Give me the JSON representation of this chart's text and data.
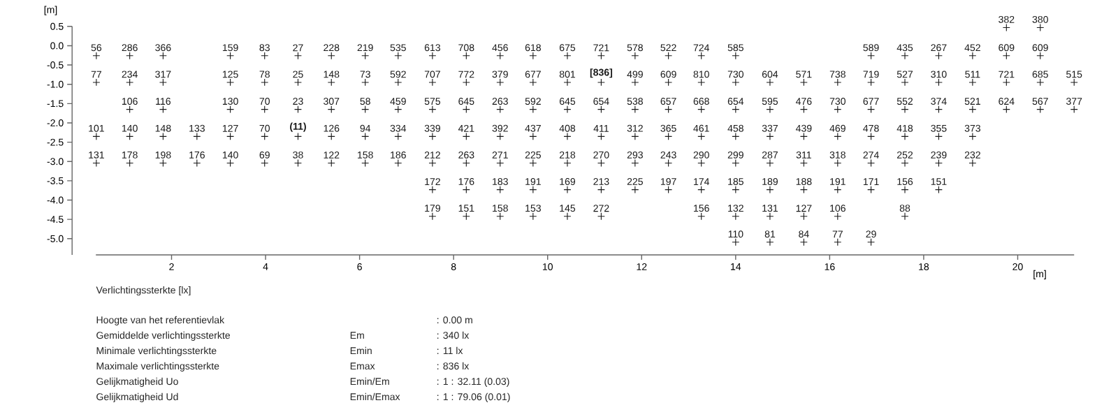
{
  "chart_data": {
    "type": "scatter",
    "xlabel": "[m]",
    "ylabel": "[m]",
    "marker": "cross",
    "color": "#1a1a1a",
    "xlim": [
      0.39,
      21.2
    ],
    "ylim": [
      -5.42,
      0.5
    ],
    "xticks": [
      2,
      4,
      6,
      8,
      10,
      12,
      14,
      16,
      18,
      20
    ],
    "yticks": [
      0.5,
      {
        "value": 0,
        "label": "0.0"
      },
      -0.5,
      {
        "value": -1,
        "label": "-1.0"
      },
      -1.5,
      {
        "value": -2,
        "label": "-2.0"
      },
      -2.5,
      {
        "value": -3,
        "label": "-3.0"
      },
      -3.5,
      {
        "value": -4,
        "label": "-4.0"
      },
      -4.5,
      {
        "value": -5,
        "label": "-5.0"
      }
    ],
    "x": [
      0.4,
      0.4,
      0.4,
      0.4,
      1.11,
      1.11,
      1.11,
      1.11,
      1.11,
      1.82,
      1.82,
      1.82,
      1.82,
      1.82,
      2.54,
      2.54,
      3.25,
      3.25,
      3.25,
      3.25,
      3.25,
      3.98,
      3.98,
      3.98,
      3.98,
      3.98,
      4.69,
      4.69,
      4.69,
      4.69,
      4.69,
      5.4,
      5.4,
      5.4,
      5.4,
      5.4,
      6.12,
      6.12,
      6.12,
      6.12,
      6.12,
      6.82,
      6.82,
      6.82,
      6.82,
      6.82,
      7.55,
      7.55,
      7.55,
      7.55,
      7.55,
      7.55,
      7.55,
      8.27,
      8.27,
      8.27,
      8.27,
      8.27,
      8.27,
      8.27,
      8.99,
      8.99,
      8.99,
      8.99,
      8.99,
      8.99,
      8.99,
      9.69,
      9.69,
      9.69,
      9.69,
      9.69,
      9.69,
      9.69,
      10.42,
      10.42,
      10.42,
      10.42,
      10.42,
      10.42,
      10.42,
      11.14,
      11.14,
      11.14,
      11.14,
      11.14,
      11.14,
      11.14,
      11.86,
      11.86,
      11.86,
      11.86,
      11.86,
      11.86,
      12.57,
      12.57,
      12.57,
      12.57,
      12.57,
      12.57,
      13.27,
      13.27,
      13.27,
      13.27,
      13.27,
      13.27,
      13.27,
      14.0,
      14.0,
      14.0,
      14.0,
      14.0,
      14.0,
      14.0,
      14.0,
      14.73,
      14.73,
      14.73,
      14.73,
      14.73,
      14.73,
      14.73,
      15.45,
      15.45,
      15.45,
      15.45,
      15.45,
      15.45,
      15.45,
      16.17,
      16.17,
      16.17,
      16.17,
      16.17,
      16.17,
      16.17,
      16.88,
      16.88,
      16.88,
      16.88,
      16.88,
      16.88,
      16.88,
      17.6,
      17.6,
      17.6,
      17.6,
      17.6,
      17.6,
      17.6,
      18.32,
      18.32,
      18.32,
      18.32,
      18.32,
      18.32,
      19.04,
      19.04,
      19.04,
      19.04,
      19.04,
      19.76,
      19.76,
      19.76,
      19.76,
      20.48,
      20.48,
      20.48,
      20.48,
      21.2,
      21.2
    ],
    "values": [
      -0.26,
      -0.95,
      -2.35,
      -3.04,
      -0.26,
      -0.95,
      -1.65,
      -2.35,
      -3.04,
      -0.26,
      -0.95,
      -1.65,
      -2.35,
      -3.04,
      -2.35,
      -3.04,
      -0.26,
      -0.95,
      -1.65,
      -2.35,
      -3.04,
      -0.26,
      -0.95,
      -1.65,
      -2.35,
      -3.04,
      -0.26,
      -0.95,
      -1.65,
      -2.35,
      -3.04,
      -0.26,
      -0.95,
      -1.65,
      -2.35,
      -3.04,
      -0.26,
      -0.95,
      -1.65,
      -2.35,
      -3.04,
      -0.26,
      -0.95,
      -1.65,
      -2.35,
      -3.04,
      -0.26,
      -0.95,
      -1.65,
      -2.35,
      -3.04,
      -3.73,
      -4.42,
      -0.26,
      -0.95,
      -1.65,
      -2.35,
      -3.04,
      -3.73,
      -4.42,
      -0.26,
      -0.95,
      -1.65,
      -2.35,
      -3.04,
      -3.73,
      -4.42,
      -0.26,
      -0.95,
      -1.65,
      -2.35,
      -3.04,
      -3.73,
      -4.42,
      -0.26,
      -0.95,
      -1.65,
      -2.35,
      -3.04,
      -3.73,
      -4.42,
      -0.26,
      -0.95,
      -1.65,
      -2.35,
      -3.04,
      -3.73,
      -4.42,
      -0.26,
      -0.95,
      -1.65,
      -2.35,
      -3.04,
      -3.73,
      -0.26,
      -0.95,
      -1.65,
      -2.35,
      -3.04,
      -3.73,
      -0.26,
      -0.95,
      -1.65,
      -2.35,
      -3.04,
      -3.73,
      -4.42,
      -0.26,
      -0.95,
      -1.65,
      -2.35,
      -3.04,
      -3.73,
      -4.42,
      -5.09,
      -0.95,
      -1.65,
      -2.35,
      -3.04,
      -3.73,
      -4.42,
      -5.09,
      -0.95,
      -1.65,
      -2.35,
      -3.04,
      -3.73,
      -4.42,
      -5.09,
      -0.95,
      -1.65,
      -2.35,
      -3.04,
      -3.73,
      -4.42,
      -5.09,
      -0.26,
      -0.95,
      -1.65,
      -2.35,
      -3.04,
      -3.73,
      -5.09,
      -0.26,
      -0.95,
      -1.65,
      -2.35,
      -3.04,
      -3.73,
      -4.42,
      -0.26,
      -0.95,
      -1.65,
      -2.35,
      -3.04,
      -3.73,
      -0.26,
      -0.95,
      -1.65,
      -2.35,
      -3.04,
      0.47,
      -0.26,
      -0.95,
      -1.65,
      0.47,
      -0.26,
      -0.95,
      -1.65,
      -0.95,
      -1.65
    ],
    "annotations": [
      "Verlichtingssterkte [lx]",
      "Hoogte van het referentievlak",
      ": 0.00 m",
      "Gemiddelde verlichtingssterkte",
      "Em",
      ": 340 lx",
      "Minimale verlichtingssterkte",
      "Emin",
      ": 11 lx",
      "Maximale verlichtingssterkte",
      "Emax",
      ": 836 lx",
      "Gelijkmatigheid Uo",
      "Emin/Em",
      ": 1 : 32.11 (0.03)",
      "Gelijkmatigheid Ud",
      "Emin/Emax",
      ": 1 : 79.06 (0.01)",
      {
        "text": "56",
        "x": 0.4,
        "y": -0.26
      },
      {
        "text": "77",
        "x": 0.4,
        "y": -0.95
      },
      {
        "text": "101",
        "x": 0.4,
        "y": -2.35
      },
      {
        "text": "131",
        "x": 0.4,
        "y": -3.04
      },
      {
        "text": "286",
        "x": 1.11,
        "y": -0.26
      },
      {
        "text": "234",
        "x": 1.11,
        "y": -0.95
      },
      {
        "text": "106",
        "x": 1.11,
        "y": -1.65
      },
      {
        "text": "140",
        "x": 1.11,
        "y": -2.35
      },
      {
        "text": "178",
        "x": 1.11,
        "y": -3.04
      },
      {
        "text": "366",
        "x": 1.82,
        "y": -0.26
      },
      {
        "text": "317",
        "x": 1.82,
        "y": -0.95
      },
      {
        "text": "116",
        "x": 1.82,
        "y": -1.65
      },
      {
        "text": "148",
        "x": 1.82,
        "y": -2.35
      },
      {
        "text": "198",
        "x": 1.82,
        "y": -3.04
      },
      {
        "text": "133",
        "x": 2.54,
        "y": -2.35
      },
      {
        "text": "176",
        "x": 2.54,
        "y": -3.04
      },
      {
        "text": "159",
        "x": 3.25,
        "y": -0.26
      },
      {
        "text": "125",
        "x": 3.25,
        "y": -0.95
      },
      {
        "text": "130",
        "x": 3.25,
        "y": -1.65
      },
      {
        "text": "127",
        "x": 3.25,
        "y": -2.35
      },
      {
        "text": "140",
        "x": 3.25,
        "y": -3.04
      },
      {
        "text": "83",
        "x": 3.98,
        "y": -0.26
      },
      {
        "text": "78",
        "x": 3.98,
        "y": -0.95
      },
      {
        "text": "70",
        "x": 3.98,
        "y": -1.65
      },
      {
        "text": "70",
        "x": 3.98,
        "y": -2.35
      },
      {
        "text": "69",
        "x": 3.98,
        "y": -3.04
      },
      {
        "text": "27",
        "x": 4.69,
        "y": -0.26
      },
      {
        "text": "25",
        "x": 4.69,
        "y": -0.95
      },
      {
        "text": "23",
        "x": 4.69,
        "y": -1.65
      },
      {
        "text": "**(11)**",
        "x": 4.69,
        "y": -2.35
      },
      {
        "text": "38",
        "x": 4.69,
        "y": -3.04
      },
      {
        "text": "228",
        "x": 5.4,
        "y": -0.26
      },
      {
        "text": "148",
        "x": 5.4,
        "y": -0.95
      },
      {
        "text": "307",
        "x": 5.4,
        "y": -1.65
      },
      {
        "text": "126",
        "x": 5.4,
        "y": -2.35
      },
      {
        "text": "122",
        "x": 5.4,
        "y": -3.04
      },
      {
        "text": "219",
        "x": 6.12,
        "y": -0.26
      },
      {
        "text": "73",
        "x": 6.12,
        "y": -0.95
      },
      {
        "text": "58",
        "x": 6.12,
        "y": -1.65
      },
      {
        "text": "94",
        "x": 6.12,
        "y": -2.35
      },
      {
        "text": "158",
        "x": 6.12,
        "y": -3.04
      },
      {
        "text": "535",
        "x": 6.82,
        "y": -0.26
      },
      {
        "text": "592",
        "x": 6.82,
        "y": -0.95
      },
      {
        "text": "459",
        "x": 6.82,
        "y": -1.65
      },
      {
        "text": "334",
        "x": 6.82,
        "y": -2.35
      },
      {
        "text": "186",
        "x": 6.82,
        "y": -3.04
      },
      {
        "text": "613",
        "x": 7.55,
        "y": -0.26
      },
      {
        "text": "707",
        "x": 7.55,
        "y": -0.95
      },
      {
        "text": "575",
        "x": 7.55,
        "y": -1.65
      },
      {
        "text": "339",
        "x": 7.55,
        "y": -2.35
      },
      {
        "text": "212",
        "x": 7.55,
        "y": -3.04
      },
      {
        "text": "172",
        "x": 7.55,
        "y": -3.73
      },
      {
        "text": "179",
        "x": 7.55,
        "y": -4.42
      },
      {
        "text": "708",
        "x": 8.27,
        "y": -0.26
      },
      {
        "text": "772",
        "x": 8.27,
        "y": -0.95
      },
      {
        "text": "645",
        "x": 8.27,
        "y": -1.65
      },
      {
        "text": "421",
        "x": 8.27,
        "y": -2.35
      },
      {
        "text": "263",
        "x": 8.27,
        "y": -3.04
      },
      {
        "text": "176",
        "x": 8.27,
        "y": -3.73
      },
      {
        "text": "151",
        "x": 8.27,
        "y": -4.42
      },
      {
        "text": "456",
        "x": 8.99,
        "y": -0.26
      },
      {
        "text": "379",
        "x": 8.99,
        "y": -0.95
      },
      {
        "text": "263",
        "x": 8.99,
        "y": -1.65
      },
      {
        "text": "392",
        "x": 8.99,
        "y": -2.35
      },
      {
        "text": "271",
        "x": 8.99,
        "y": -3.04
      },
      {
        "text": "183",
        "x": 8.99,
        "y": -3.73
      },
      {
        "text": "158",
        "x": 8.99,
        "y": -4.42
      },
      {
        "text": "618",
        "x": 9.69,
        "y": -0.26
      },
      {
        "text": "677",
        "x": 9.69,
        "y": -0.95
      },
      {
        "text": "592",
        "x": 9.69,
        "y": -1.65
      },
      {
        "text": "437",
        "x": 9.69,
        "y": -2.35
      },
      {
        "text": "225",
        "x": 9.69,
        "y": -3.04
      },
      {
        "text": "191",
        "x": 9.69,
        "y": -3.73
      },
      {
        "text": "153",
        "x": 9.69,
        "y": -4.42
      },
      {
        "text": "675",
        "x": 10.42,
        "y": -0.26
      },
      {
        "text": "801",
        "x": 10.42,
        "y": -0.95
      },
      {
        "text": "645",
        "x": 10.42,
        "y": -1.65
      },
      {
        "text": "408",
        "x": 10.42,
        "y": -2.35
      },
      {
        "text": "218",
        "x": 10.42,
        "y": -3.04
      },
      {
        "text": "169",
        "x": 10.42,
        "y": -3.73
      },
      {
        "text": "145",
        "x": 10.42,
        "y": -4.42
      },
      {
        "text": "721",
        "x": 11.14,
        "y": -0.26
      },
      {
        "text": "**[836]**",
        "x": 11.14,
        "y": -0.95
      },
      {
        "text": "654",
        "x": 11.14,
        "y": -1.65
      },
      {
        "text": "411",
        "x": 11.14,
        "y": -2.35
      },
      {
        "text": "270",
        "x": 11.14,
        "y": -3.04
      },
      {
        "text": "213",
        "x": 11.14,
        "y": -3.73
      },
      {
        "text": "272",
        "x": 11.14,
        "y": -4.42
      },
      {
        "text": "578",
        "x": 11.86,
        "y": -0.26
      },
      {
        "text": "499",
        "x": 11.86,
        "y": -0.95
      },
      {
        "text": "538",
        "x": 11.86,
        "y": -1.65
      },
      {
        "text": "312",
        "x": 11.86,
        "y": -2.35
      },
      {
        "text": "293",
        "x": 11.86,
        "y": -3.04
      },
      {
        "text": "225",
        "x": 11.86,
        "y": -3.73
      },
      {
        "text": "522",
        "x": 12.57,
        "y": -0.26
      },
      {
        "text": "609",
        "x": 12.57,
        "y": -0.95
      },
      {
        "text": "657",
        "x": 12.57,
        "y": -1.65
      },
      {
        "text": "365",
        "x": 12.57,
        "y": -2.35
      },
      {
        "text": "243",
        "x": 12.57,
        "y": -3.04
      },
      {
        "text": "197",
        "x": 12.57,
        "y": -3.73
      },
      {
        "text": "724",
        "x": 13.27,
        "y": -0.26
      },
      {
        "text": "810",
        "x": 13.27,
        "y": -0.95
      },
      {
        "text": "668",
        "x": 13.27,
        "y": -1.65
      },
      {
        "text": "461",
        "x": 13.27,
        "y": -2.35
      },
      {
        "text": "290",
        "x": 13.27,
        "y": -3.04
      },
      {
        "text": "174",
        "x": 13.27,
        "y": -3.73
      },
      {
        "text": "156",
        "x": 13.27,
        "y": -4.42
      },
      {
        "text": "585",
        "x": 14.0,
        "y": -0.26
      },
      {
        "text": "730",
        "x": 14.0,
        "y": -0.95
      },
      {
        "text": "654",
        "x": 14.0,
        "y": -1.65
      },
      {
        "text": "458",
        "x": 14.0,
        "y": -2.35
      },
      {
        "text": "299",
        "x": 14.0,
        "y": -3.04
      },
      {
        "text": "185",
        "x": 14.0,
        "y": -3.73
      },
      {
        "text": "132",
        "x": 14.0,
        "y": -4.42
      },
      {
        "text": "110",
        "x": 14.0,
        "y": -5.09
      },
      {
        "text": "604",
        "x": 14.73,
        "y": -0.95
      },
      {
        "text": "595",
        "x": 14.73,
        "y": -1.65
      },
      {
        "text": "337",
        "x": 14.73,
        "y": -2.35
      },
      {
        "text": "287",
        "x": 14.73,
        "y": -3.04
      },
      {
        "text": "189",
        "x": 14.73,
        "y": -3.73
      },
      {
        "text": "131",
        "x": 14.73,
        "y": -4.42
      },
      {
        "text": "81",
        "x": 14.73,
        "y": -5.09
      },
      {
        "text": "571",
        "x": 15.45,
        "y": -0.95
      },
      {
        "text": "476",
        "x": 15.45,
        "y": -1.65
      },
      {
        "text": "439",
        "x": 15.45,
        "y": -2.35
      },
      {
        "text": "311",
        "x": 15.45,
        "y": -3.04
      },
      {
        "text": "188",
        "x": 15.45,
        "y": -3.73
      },
      {
        "text": "127",
        "x": 15.45,
        "y": -4.42
      },
      {
        "text": "84",
        "x": 15.45,
        "y": -5.09
      },
      {
        "text": "738",
        "x": 16.17,
        "y": -0.95
      },
      {
        "text": "730",
        "x": 16.17,
        "y": -1.65
      },
      {
        "text": "469",
        "x": 16.17,
        "y": -2.35
      },
      {
        "text": "318",
        "x": 16.17,
        "y": -3.04
      },
      {
        "text": "191",
        "x": 16.17,
        "y": -3.73
      },
      {
        "text": "106",
        "x": 16.17,
        "y": -4.42
      },
      {
        "text": "77",
        "x": 16.17,
        "y": -5.09
      },
      {
        "text": "589",
        "x": 16.88,
        "y": -0.26
      },
      {
        "text": "719",
        "x": 16.88,
        "y": -0.95
      },
      {
        "text": "677",
        "x": 16.88,
        "y": -1.65
      },
      {
        "text": "478",
        "x": 16.88,
        "y": -2.35
      },
      {
        "text": "274",
        "x": 16.88,
        "y": -3.04
      },
      {
        "text": "171",
        "x": 16.88,
        "y": -3.73
      },
      {
        "text": "29",
        "x": 16.88,
        "y": -5.09
      },
      {
        "text": "435",
        "x": 17.6,
        "y": -0.26
      },
      {
        "text": "527",
        "x": 17.6,
        "y": -0.95
      },
      {
        "text": "552",
        "x": 17.6,
        "y": -1.65
      },
      {
        "text": "418",
        "x": 17.6,
        "y": -2.35
      },
      {
        "text": "252",
        "x": 17.6,
        "y": -3.04
      },
      {
        "text": "156",
        "x": 17.6,
        "y": -3.73
      },
      {
        "text": "88",
        "x": 17.6,
        "y": -4.42
      },
      {
        "text": "267",
        "x": 18.32,
        "y": -0.26
      },
      {
        "text": "310",
        "x": 18.32,
        "y": -0.95
      },
      {
        "text": "374",
        "x": 18.32,
        "y": -1.65
      },
      {
        "text": "355",
        "x": 18.32,
        "y": -2.35
      },
      {
        "text": "239",
        "x": 18.32,
        "y": -3.04
      },
      {
        "text": "151",
        "x": 18.32,
        "y": -3.73
      },
      {
        "text": "452",
        "x": 19.04,
        "y": -0.26
      },
      {
        "text": "511",
        "x": 19.04,
        "y": -0.95
      },
      {
        "text": "521",
        "x": 19.04,
        "y": -1.65
      },
      {
        "text": "373",
        "x": 19.04,
        "y": -2.35
      },
      {
        "text": "232",
        "x": 19.04,
        "y": -3.04
      },
      {
        "text": "382",
        "x": 19.76,
        "y": 0.47
      },
      {
        "text": "609",
        "x": 19.76,
        "y": -0.26
      },
      {
        "text": "721",
        "x": 19.76,
        "y": -0.95
      },
      {
        "text": "624",
        "x": 19.76,
        "y": -1.65
      },
      {
        "text": "380",
        "x": 20.48,
        "y": 0.47
      },
      {
        "text": "609",
        "x": 20.48,
        "y": -0.26
      },
      {
        "text": "685",
        "x": 20.48,
        "y": -0.95
      },
      {
        "text": "567",
        "x": 20.48,
        "y": -1.65
      },
      {
        "text": "515",
        "x": 21.2,
        "y": -0.95
      },
      {
        "text": "377",
        "x": 21.2,
        "y": -1.65
      }
    ]
  }
}
